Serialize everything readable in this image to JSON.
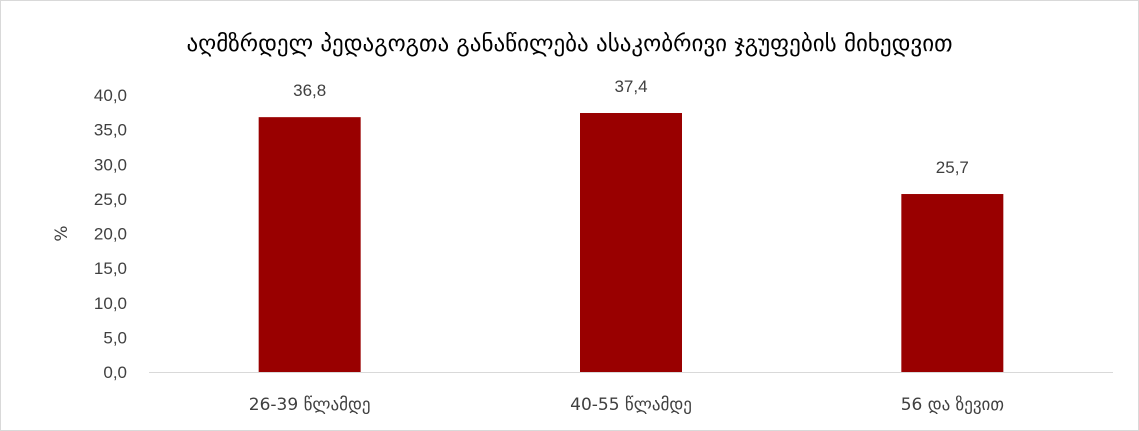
{
  "chart_data": {
    "type": "bar",
    "title": "აღმზრდელ პედაგოგთა განაწილება ასაკობრივი ჯგუფების მიხედვით",
    "ylabel": "%",
    "xlabel": "",
    "categories": [
      "26-39 წლამდე",
      "40-55 წლამდე",
      "56 და ზევით"
    ],
    "values": [
      36.8,
      37.4,
      25.7
    ],
    "value_labels": [
      "36,8",
      "37,4",
      "25,7"
    ],
    "ylim": [
      0,
      40
    ],
    "yticks": [
      "0,0",
      "5,0",
      "10,0",
      "15,0",
      "20,0",
      "25,0",
      "30,0",
      "35,0",
      "40,0"
    ],
    "ytick_values": [
      0,
      5,
      10,
      15,
      20,
      25,
      30,
      35,
      40
    ],
    "bar_color": "#990000",
    "grid": false,
    "legend": false
  }
}
